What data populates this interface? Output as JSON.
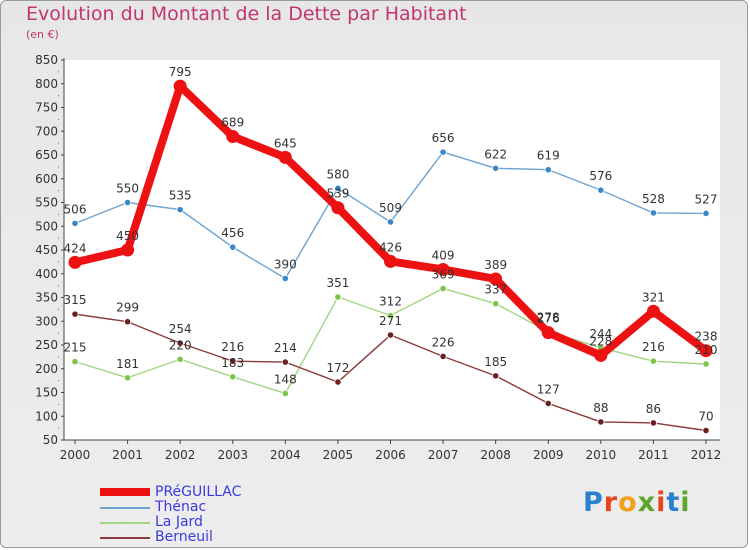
{
  "header": {
    "title": "Evolution du Montant de la Dette par Habitant",
    "subtitle": "(en €)"
  },
  "logo": {
    "text": "Proxiti",
    "letter_colors": [
      "#2a7fcf",
      "#e8441c",
      "#f0a21a",
      "#5aa62d",
      "#e8441c",
      "#2a7fcf",
      "#5aa62d"
    ]
  },
  "chart_data": {
    "type": "line",
    "title": "Evolution du Montant de la Dette par Habitant",
    "subtitle": "(en €)",
    "xlabel": "",
    "ylabel": "",
    "x": [
      "2000",
      "2001",
      "2002",
      "2003",
      "2004",
      "2005",
      "2006",
      "2007",
      "2008",
      "2009",
      "2010",
      "2011",
      "2012"
    ],
    "ylim": [
      50,
      850
    ],
    "yticks": [
      50,
      100,
      150,
      200,
      250,
      300,
      350,
      400,
      450,
      500,
      550,
      600,
      650,
      700,
      750,
      800,
      850
    ],
    "grid": false,
    "legend_position": "bottom-left",
    "series": [
      {
        "name": "PRéGUILLAC",
        "color": "#ee1111",
        "marker_color": "#ee1111",
        "emphasis": "bold",
        "values": [
          424,
          450,
          795,
          689,
          645,
          539,
          426,
          409,
          389,
          276,
          228,
          321,
          238
        ],
        "labels": [
          "424",
          "450",
          "795",
          "689",
          "645",
          "539",
          "426",
          "409",
          "389",
          "276",
          "228",
          "321",
          "238"
        ]
      },
      {
        "name": "Thénac",
        "color": "#6fa3cf",
        "marker_color": "#3b86c8",
        "emphasis": "normal",
        "values": [
          506,
          550,
          535,
          456,
          390,
          580,
          509,
          656,
          622,
          619,
          576,
          528,
          527
        ],
        "labels": [
          "506",
          "550",
          "535",
          "456",
          "390",
          "580",
          "509",
          "656",
          "622",
          "619",
          "576",
          "528",
          "527"
        ]
      },
      {
        "name": "La Jard",
        "color": "#9fd67f",
        "marker_color": "#7cc44a",
        "emphasis": "normal",
        "values": [
          215,
          181,
          220,
          183,
          148,
          351,
          312,
          369,
          337,
          278,
          244,
          216,
          210
        ],
        "labels": [
          "215",
          "181",
          "220",
          "183",
          "148",
          "351",
          "312",
          "369",
          "337",
          "278",
          "244",
          "216",
          "210"
        ]
      },
      {
        "name": "Berneuil",
        "color": "#8b3a3a",
        "marker_color": "#6b1f1f",
        "emphasis": "normal",
        "values": [
          315,
          299,
          254,
          216,
          214,
          172,
          271,
          226,
          185,
          127,
          88,
          86,
          70
        ],
        "labels": [
          "315",
          "299",
          "254",
          "216",
          "214",
          "172",
          "271",
          "226",
          "185",
          "127",
          "88",
          "86",
          "70"
        ]
      }
    ]
  }
}
